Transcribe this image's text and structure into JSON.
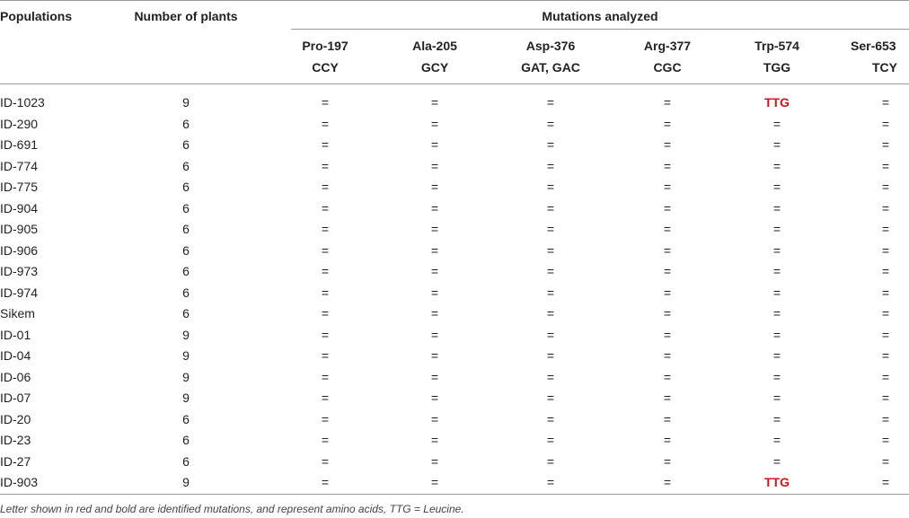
{
  "headers": {
    "populations": "Populations",
    "number_of_plants": "Number of plants",
    "mutations_analyzed": "Mutations analyzed"
  },
  "mutation_columns": [
    {
      "name": "Pro-197",
      "codon": "CCY"
    },
    {
      "name": "Ala-205",
      "codon": "GCY"
    },
    {
      "name": "Asp-376",
      "codon": "GAT, GAC"
    },
    {
      "name": "Arg-377",
      "codon": "CGC"
    },
    {
      "name": "Trp-574",
      "codon": "TGG"
    },
    {
      "name": "Ser-653",
      "codon": "TCY"
    }
  ],
  "rows": [
    {
      "population": "ID-1023",
      "plants": "9",
      "cells": [
        "=",
        "=",
        "=",
        "=",
        "TTG",
        "="
      ],
      "mutated": [
        false,
        false,
        false,
        false,
        true,
        false
      ]
    },
    {
      "population": "ID-290",
      "plants": "6",
      "cells": [
        "=",
        "=",
        "=",
        "=",
        "=",
        "="
      ],
      "mutated": [
        false,
        false,
        false,
        false,
        false,
        false
      ]
    },
    {
      "population": "ID-691",
      "plants": "6",
      "cells": [
        "=",
        "=",
        "=",
        "=",
        "=",
        "="
      ],
      "mutated": [
        false,
        false,
        false,
        false,
        false,
        false
      ]
    },
    {
      "population": "ID-774",
      "plants": "6",
      "cells": [
        "=",
        "=",
        "=",
        "=",
        "=",
        "="
      ],
      "mutated": [
        false,
        false,
        false,
        false,
        false,
        false
      ]
    },
    {
      "population": "ID-775",
      "plants": "6",
      "cells": [
        "=",
        "=",
        "=",
        "=",
        "=",
        "="
      ],
      "mutated": [
        false,
        false,
        false,
        false,
        false,
        false
      ]
    },
    {
      "population": "ID-904",
      "plants": "6",
      "cells": [
        "=",
        "=",
        "=",
        "=",
        "=",
        "="
      ],
      "mutated": [
        false,
        false,
        false,
        false,
        false,
        false
      ]
    },
    {
      "population": "ID-905",
      "plants": "6",
      "cells": [
        "=",
        "=",
        "=",
        "=",
        "=",
        "="
      ],
      "mutated": [
        false,
        false,
        false,
        false,
        false,
        false
      ]
    },
    {
      "population": "ID-906",
      "plants": "6",
      "cells": [
        "=",
        "=",
        "=",
        "=",
        "=",
        "="
      ],
      "mutated": [
        false,
        false,
        false,
        false,
        false,
        false
      ]
    },
    {
      "population": "ID-973",
      "plants": "6",
      "cells": [
        "=",
        "=",
        "=",
        "=",
        "=",
        "="
      ],
      "mutated": [
        false,
        false,
        false,
        false,
        false,
        false
      ]
    },
    {
      "population": "ID-974",
      "plants": "6",
      "cells": [
        "=",
        "=",
        "=",
        "=",
        "=",
        "="
      ],
      "mutated": [
        false,
        false,
        false,
        false,
        false,
        false
      ]
    },
    {
      "population": "Sikem",
      "plants": "6",
      "cells": [
        "=",
        "=",
        "=",
        "=",
        "=",
        "="
      ],
      "mutated": [
        false,
        false,
        false,
        false,
        false,
        false
      ]
    },
    {
      "population": "ID-01",
      "plants": "9",
      "cells": [
        "=",
        "=",
        "=",
        "=",
        "=",
        "="
      ],
      "mutated": [
        false,
        false,
        false,
        false,
        false,
        false
      ]
    },
    {
      "population": "ID-04",
      "plants": "9",
      "cells": [
        "=",
        "=",
        "=",
        "=",
        "=",
        "="
      ],
      "mutated": [
        false,
        false,
        false,
        false,
        false,
        false
      ]
    },
    {
      "population": "ID-06",
      "plants": "9",
      "cells": [
        "=",
        "=",
        "=",
        "=",
        "=",
        "="
      ],
      "mutated": [
        false,
        false,
        false,
        false,
        false,
        false
      ]
    },
    {
      "population": "ID-07",
      "plants": "9",
      "cells": [
        "=",
        "=",
        "=",
        "=",
        "=",
        "="
      ],
      "mutated": [
        false,
        false,
        false,
        false,
        false,
        false
      ]
    },
    {
      "population": "ID-20",
      "plants": "6",
      "cells": [
        "=",
        "=",
        "=",
        "=",
        "=",
        "="
      ],
      "mutated": [
        false,
        false,
        false,
        false,
        false,
        false
      ]
    },
    {
      "population": "ID-23",
      "plants": "6",
      "cells": [
        "=",
        "=",
        "=",
        "=",
        "=",
        "="
      ],
      "mutated": [
        false,
        false,
        false,
        false,
        false,
        false
      ]
    },
    {
      "population": "ID-27",
      "plants": "6",
      "cells": [
        "=",
        "=",
        "=",
        "=",
        "=",
        "="
      ],
      "mutated": [
        false,
        false,
        false,
        false,
        false,
        false
      ]
    },
    {
      "population": "ID-903",
      "plants": "9",
      "cells": [
        "=",
        "=",
        "=",
        "=",
        "TTG",
        "="
      ],
      "mutated": [
        false,
        false,
        false,
        false,
        true,
        false
      ]
    }
  ],
  "footnote": "Letter shown in red and bold are identified mutations, and represent amino acids, TTG = Leucine.",
  "colors": {
    "mutation": "#d2141e",
    "rule": "#9a9a9a"
  }
}
